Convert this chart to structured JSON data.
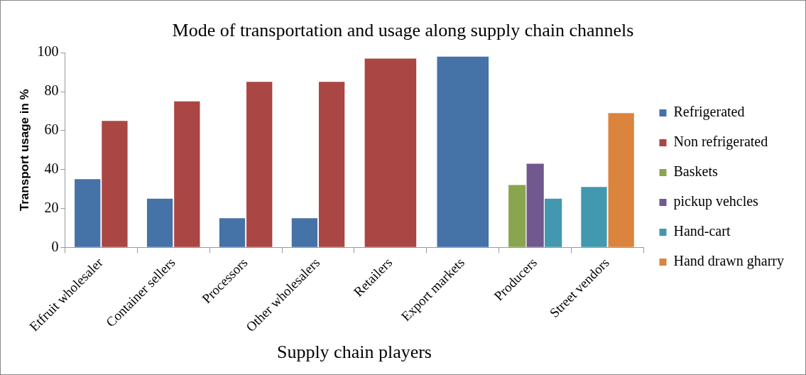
{
  "chart_data": {
    "type": "bar",
    "title": "Mode of transportation and usage along supply chain channels",
    "xlabel": "Supply chain players",
    "ylabel": "Transport usage in %",
    "categories": [
      "Etfruit wholesaler",
      "Container sellers",
      "Processors",
      "Other wholesalers",
      "Retailers",
      "Export markets",
      "Producers",
      "Street vendors"
    ],
    "series": [
      {
        "name": "Refrigerated",
        "color": "#4572a7",
        "values": [
          35,
          25,
          15,
          15,
          null,
          98,
          null,
          null
        ]
      },
      {
        "name": "Non refrigerated",
        "color": "#aa4643",
        "values": [
          65,
          75,
          85,
          85,
          97,
          null,
          null,
          null
        ]
      },
      {
        "name": "Baskets",
        "color": "#89a54e",
        "values": [
          null,
          null,
          null,
          null,
          null,
          null,
          32,
          null
        ]
      },
      {
        "name": "pickup vehcles",
        "color": "#71588f",
        "values": [
          null,
          null,
          null,
          null,
          null,
          null,
          43,
          null
        ]
      },
      {
        "name": "Hand-cart",
        "color": "#4198af",
        "values": [
          null,
          null,
          null,
          null,
          null,
          null,
          25,
          31
        ]
      },
      {
        "name": "Hand drawn gharry",
        "color": "#db843d",
        "values": [
          null,
          null,
          null,
          null,
          null,
          null,
          null,
          69
        ]
      }
    ],
    "ylim": [
      0,
      100
    ],
    "yticks": [
      0,
      20,
      40,
      60,
      80,
      100
    ],
    "grid": false,
    "legend": "right"
  }
}
